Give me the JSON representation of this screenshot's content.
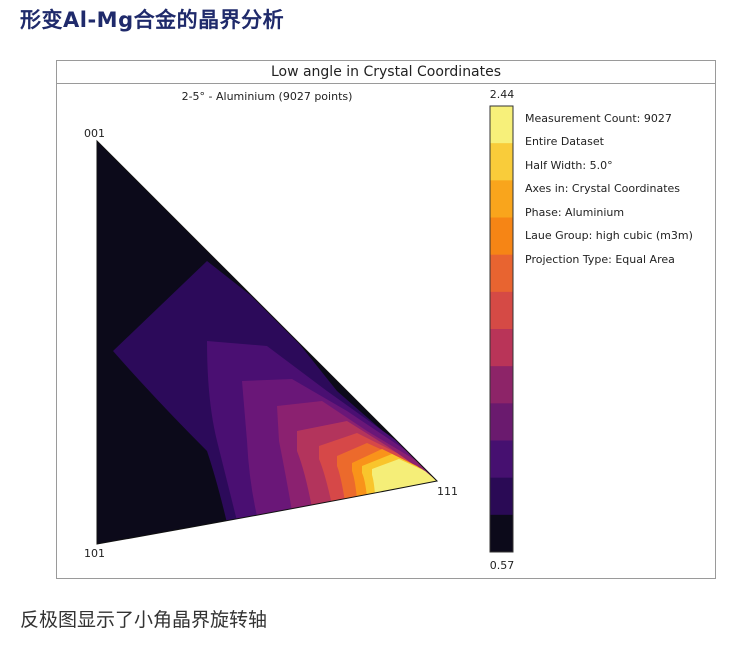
{
  "article": {
    "heading": "形变Al-Mg合金的晶界分析",
    "caption": "反极图显示了小角晶界旋转轴"
  },
  "figure": {
    "title": "Low angle in Crystal Coordinates",
    "subtitle": "2-5° - Aluminium (9027 points)",
    "pole_labels": {
      "top": "001",
      "bottom": "101",
      "right": "111"
    },
    "colorbar": {
      "max_label": "2.44",
      "min_label": "0.57",
      "colors_top_to_bottom": [
        "#f7f07a",
        "#f9cc3a",
        "#f9a51c",
        "#f68515",
        "#e86430",
        "#d54a45",
        "#b93458",
        "#8d2468",
        "#6a1a6e",
        "#461070",
        "#2a0a55",
        "#0c0a1a"
      ]
    },
    "info_lines": [
      "Measurement Count: 9027",
      "Entire Dataset",
      "Half Width: 5.0°",
      "Axes in: Crystal Coordinates",
      "Phase: Aluminium",
      "Laue Group: high cubic (m3m)",
      "Projection Type: Equal Area"
    ],
    "ipf_colors": {
      "c0": "#0c0a1a",
      "c1": "#2c0a5a",
      "c2": "#4a0f72",
      "c3": "#6a1778",
      "c4": "#8b2170",
      "c5": "#b3345c",
      "c6": "#d64848",
      "c7": "#ec6a2c",
      "c8": "#f9931a",
      "c9": "#f9c52c",
      "c10": "#f5ee78"
    }
  }
}
